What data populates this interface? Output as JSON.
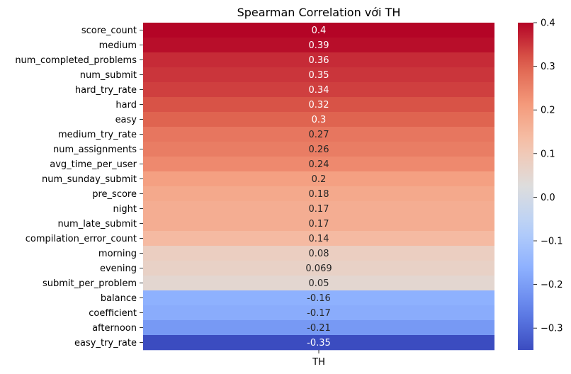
{
  "chart_data": {
    "type": "heatmap",
    "title": "Spearman Correlation với TH",
    "column": "TH",
    "rows": [
      {
        "label": "score_count",
        "value": 0.4,
        "text": "0.4"
      },
      {
        "label": "medium",
        "value": 0.39,
        "text": "0.39"
      },
      {
        "label": "num_completed_problems",
        "value": 0.36,
        "text": "0.36"
      },
      {
        "label": "num_submit",
        "value": 0.35,
        "text": "0.35"
      },
      {
        "label": "hard_try_rate",
        "value": 0.34,
        "text": "0.34"
      },
      {
        "label": "hard",
        "value": 0.32,
        "text": "0.32"
      },
      {
        "label": "easy",
        "value": 0.3,
        "text": "0.3"
      },
      {
        "label": "medium_try_rate",
        "value": 0.27,
        "text": "0.27"
      },
      {
        "label": "num_assignments",
        "value": 0.26,
        "text": "0.26"
      },
      {
        "label": "avg_time_per_user",
        "value": 0.24,
        "text": "0.24"
      },
      {
        "label": "num_sunday_submit",
        "value": 0.2,
        "text": "0.2"
      },
      {
        "label": "pre_score",
        "value": 0.18,
        "text": "0.18"
      },
      {
        "label": "night",
        "value": 0.17,
        "text": "0.17"
      },
      {
        "label": "num_late_submit",
        "value": 0.17,
        "text": "0.17"
      },
      {
        "label": "compilation_error_count",
        "value": 0.14,
        "text": "0.14"
      },
      {
        "label": "morning",
        "value": 0.08,
        "text": "0.08"
      },
      {
        "label": "evening",
        "value": 0.069,
        "text": "0.069"
      },
      {
        "label": "submit_per_problem",
        "value": 0.05,
        "text": "0.05"
      },
      {
        "label": "balance",
        "value": -0.16,
        "text": "-0.16"
      },
      {
        "label": "coefficient",
        "value": -0.17,
        "text": "-0.17"
      },
      {
        "label": "afternoon",
        "value": -0.21,
        "text": "-0.21"
      },
      {
        "label": "easy_try_rate",
        "value": -0.35,
        "text": "-0.35"
      }
    ],
    "colormap": "coolwarm",
    "vmin": -0.35,
    "vmax": 0.4,
    "colorbar_ticks": [
      {
        "value": 0.4,
        "text": "0.4"
      },
      {
        "value": 0.3,
        "text": "0.3"
      },
      {
        "value": 0.2,
        "text": "0.2"
      },
      {
        "value": 0.1,
        "text": "0.1"
      },
      {
        "value": 0.0,
        "text": "0.0"
      },
      {
        "value": -0.1,
        "text": "−0.1"
      },
      {
        "value": -0.2,
        "text": "−0.2"
      },
      {
        "value": -0.3,
        "text": "−0.3"
      }
    ]
  }
}
